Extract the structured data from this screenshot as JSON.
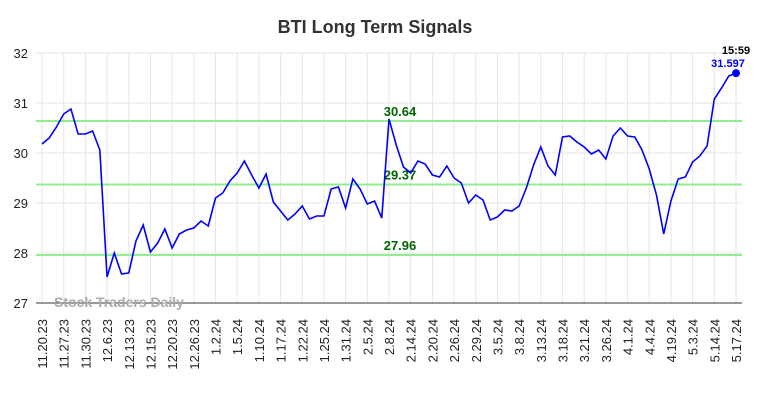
{
  "chart_data": {
    "type": "line",
    "title": "BTI Long Term Signals",
    "categories": [
      "11.20.23",
      null,
      null,
      "11.27.23",
      null,
      null,
      "11.30.23",
      null,
      null,
      "12.6.23",
      null,
      null,
      "12.13.23",
      null,
      null,
      "12.15.23",
      null,
      null,
      "12.20.23",
      null,
      null,
      "12.26.23",
      null,
      null,
      "1.2.24",
      null,
      null,
      "1.5.24",
      null,
      null,
      "1.10.24",
      null,
      null,
      "1.17.24",
      null,
      null,
      "1.22.24",
      null,
      null,
      "1.25.24",
      null,
      null,
      "1.31.24",
      null,
      null,
      "2.5.24",
      null,
      null,
      "2.8.24",
      null,
      null,
      "2.14.24",
      null,
      null,
      "2.20.24",
      null,
      null,
      "2.26.24",
      null,
      null,
      "2.29.24",
      null,
      null,
      "3.5.24",
      null,
      null,
      "3.8.24",
      null,
      null,
      "3.13.24",
      null,
      null,
      "3.18.24",
      null,
      null,
      "3.21.24",
      null,
      null,
      "3.26.24",
      null,
      null,
      "4.1.24",
      null,
      null,
      "4.4.24",
      null,
      null,
      "4.19.24",
      null,
      null,
      "5.3.24",
      null,
      null,
      "5.14.24",
      null,
      null,
      "5.17.24"
    ],
    "series": [
      {
        "name": "BTI",
        "color": "#0000ff",
        "values": [
          30.18,
          30.3,
          30.52,
          30.78,
          30.88,
          30.38,
          30.38,
          30.44,
          30.06,
          27.52,
          28.0,
          27.58,
          27.6,
          28.24,
          28.56,
          28.02,
          28.2,
          28.48,
          28.1,
          28.38,
          28.46,
          28.5,
          28.64,
          28.54,
          29.1,
          29.2,
          29.44,
          29.6,
          29.84,
          29.56,
          29.3,
          29.58,
          29.02,
          28.84,
          28.66,
          28.78,
          28.94,
          28.68,
          28.74,
          28.74,
          29.28,
          29.32,
          28.9,
          29.48,
          29.28,
          28.98,
          29.04,
          28.7,
          30.68,
          30.16,
          29.72,
          29.6,
          29.84,
          29.78,
          29.56,
          29.52,
          29.74,
          29.5,
          29.4,
          29.0,
          29.16,
          29.06,
          28.66,
          28.72,
          28.86,
          28.84,
          28.94,
          29.3,
          29.76,
          30.12,
          29.74,
          29.56,
          30.32,
          30.34,
          30.22,
          30.12,
          29.98,
          30.06,
          29.88,
          30.34,
          30.5,
          30.34,
          30.32,
          30.06,
          29.68,
          29.16,
          28.38,
          29.04,
          29.48,
          29.52,
          29.82,
          29.94,
          30.14,
          31.08,
          31.3,
          31.54,
          31.597
        ]
      }
    ],
    "hlines": [
      30.64,
      29.37,
      27.96
    ],
    "hline_color": "#90ee90",
    "hline_label_color": "#006400",
    "last_time": "15:59",
    "watermark": "Stock Traders Daily",
    "ylim": [
      27,
      32
    ],
    "yticks": [
      27,
      28,
      29,
      30,
      31,
      32
    ],
    "grid": true
  }
}
